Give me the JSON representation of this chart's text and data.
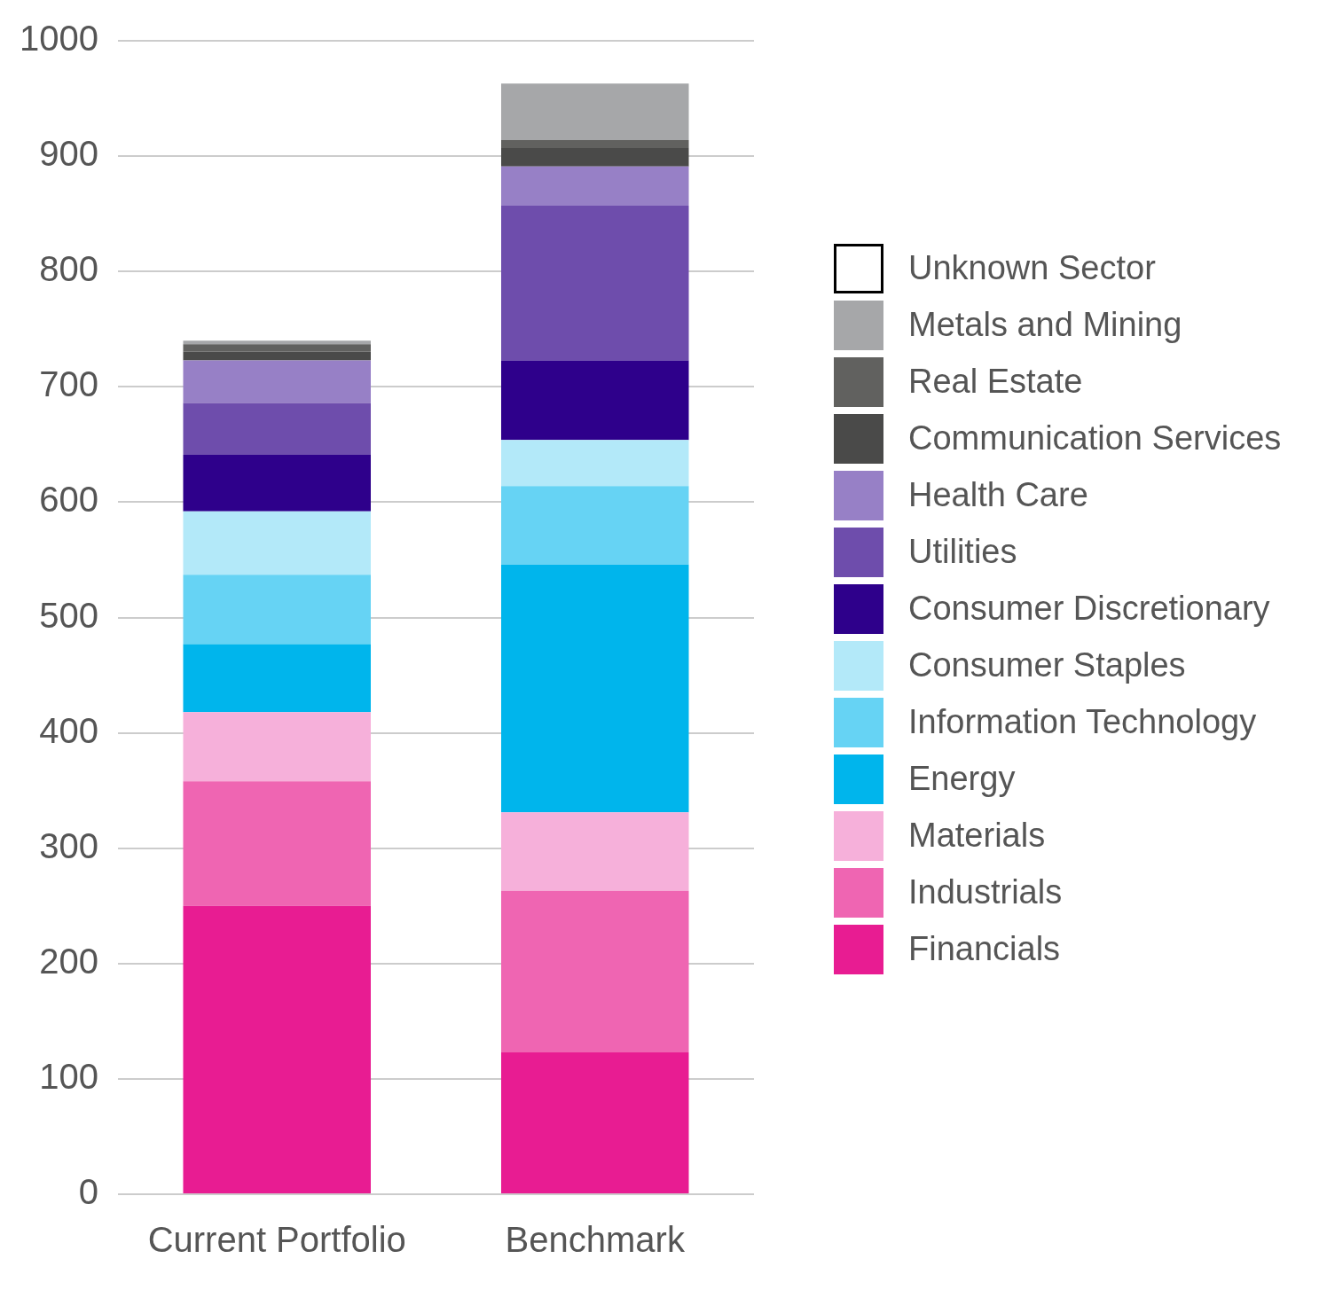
{
  "chart_data": {
    "type": "bar",
    "stacked": true,
    "categories": [
      "Current Portfolio",
      "Benchmark"
    ],
    "ylim": [
      0,
      1000
    ],
    "yticks": [
      0,
      100,
      200,
      300,
      400,
      500,
      600,
      700,
      800,
      900,
      1000
    ],
    "grid": "y",
    "legend": "right",
    "series": [
      {
        "name": "Financials",
        "color": "#e81c92",
        "values": [
          250,
          123
        ]
      },
      {
        "name": "Industrials",
        "color": "#ef65b2",
        "values": [
          108,
          140
        ]
      },
      {
        "name": "Materials",
        "color": "#f6b0da",
        "values": [
          60,
          68
        ]
      },
      {
        "name": "Energy",
        "color": "#00b5ec",
        "values": [
          59,
          215
        ]
      },
      {
        "name": "Information Technology",
        "color": "#66d3f4",
        "values": [
          60,
          68
        ]
      },
      {
        "name": "Consumer Staples",
        "color": "#b3e9f9",
        "values": [
          55,
          40
        ]
      },
      {
        "name": "Consumer Discretionary",
        "color": "#2e008b",
        "values": [
          49,
          69
        ]
      },
      {
        "name": "Utilities",
        "color": "#6e4dac",
        "values": [
          45,
          134
        ]
      },
      {
        "name": "Health Care",
        "color": "#9780c6",
        "values": [
          37,
          34
        ]
      },
      {
        "name": "Communication Services",
        "color": "#4a4a49",
        "values": [
          7.5,
          16
        ]
      },
      {
        "name": "Real Estate",
        "color": "#61615f",
        "values": [
          6.5,
          7
        ]
      },
      {
        "name": "Metals and Mining",
        "color": "#a6a7a9",
        "values": [
          3,
          49
        ]
      },
      {
        "name": "Unknown Sector",
        "color": "#ffffff",
        "values": [
          0,
          0
        ]
      }
    ]
  }
}
